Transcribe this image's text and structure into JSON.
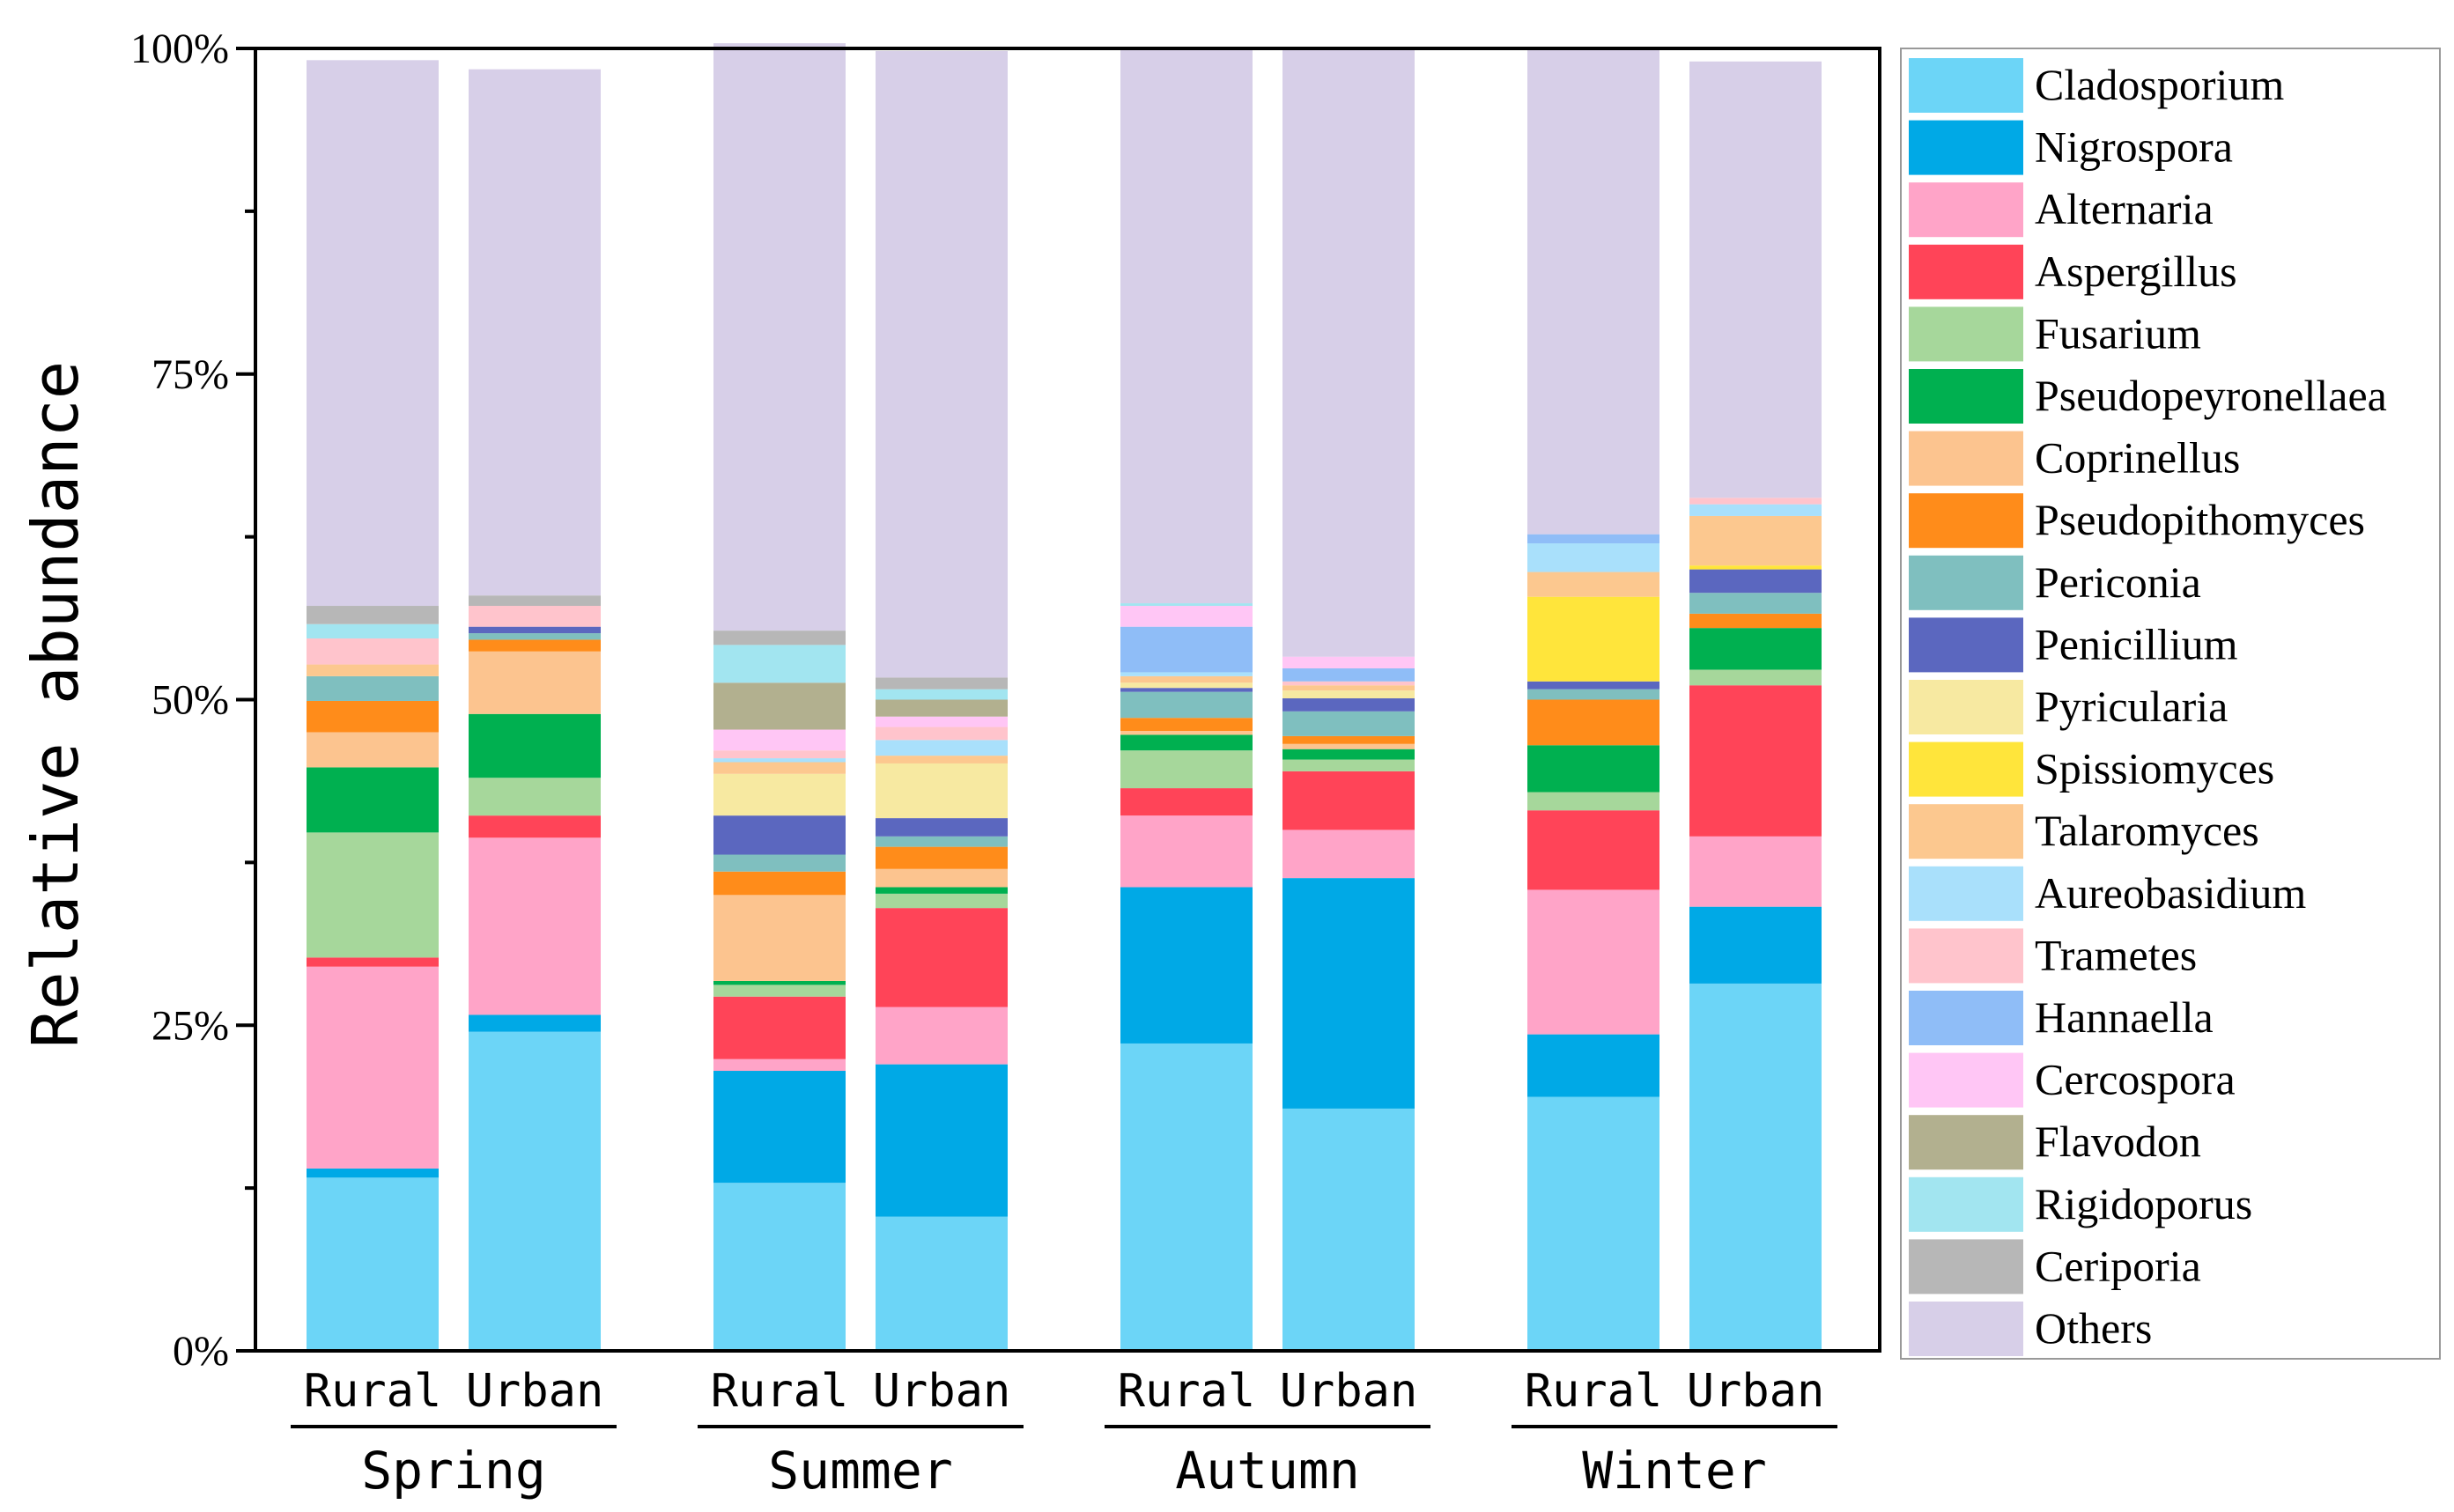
{
  "chart_data": {
    "type": "stacked-bar",
    "ylabel": "Relative abundance",
    "ylim": [
      0,
      100
    ],
    "yticks": [
      "0%",
      "25%",
      "50%",
      "75%",
      "100%"
    ],
    "groups": [
      {
        "name": "Spring",
        "bars": [
          "Rural",
          "Urban"
        ]
      },
      {
        "name": "Summer",
        "bars": [
          "Rural",
          "Urban"
        ]
      },
      {
        "name": "Autumn",
        "bars": [
          "Rural",
          "Urban"
        ]
      },
      {
        "name": "Winter",
        "bars": [
          "Rural",
          "Urban"
        ]
      }
    ],
    "series": [
      {
        "name": "Cladosporium",
        "color": "#6cd5f7",
        "values": [
          13.3,
          24.5,
          12.9,
          10.3,
          23.6,
          18.6,
          19.5,
          28.2
        ]
      },
      {
        "name": "Nigrospora",
        "color": "#00a9e6",
        "values": [
          0.7,
          1.3,
          8.6,
          11.7,
          12.0,
          17.7,
          4.8,
          5.9
        ]
      },
      {
        "name": "Alternaria",
        "color": "#ffa4c8",
        "values": [
          15.5,
          13.6,
          0.9,
          4.4,
          5.5,
          3.7,
          11.1,
          5.4
        ]
      },
      {
        "name": "Aspergillus",
        "color": "#ff4458",
        "values": [
          0.7,
          1.7,
          4.8,
          7.6,
          2.1,
          4.5,
          6.1,
          11.6
        ]
      },
      {
        "name": "Fusarium",
        "color": "#a6d79b",
        "values": [
          9.6,
          2.9,
          0.9,
          1.1,
          2.9,
          0.9,
          1.4,
          1.2
        ]
      },
      {
        "name": "Pseudopeyronellaea",
        "color": "#00b050",
        "values": [
          5.0,
          4.9,
          0.3,
          0.5,
          1.2,
          0.8,
          3.6,
          3.2
        ]
      },
      {
        "name": "Coprinellus",
        "color": "#fcc48f",
        "values": [
          2.7,
          4.8,
          6.6,
          1.4,
          0.3,
          0.4,
          0.0,
          0.0
        ]
      },
      {
        "name": "Pseudopithomyces",
        "color": "#ff8c1a",
        "values": [
          2.4,
          0.9,
          1.8,
          1.7,
          1.0,
          0.6,
          3.5,
          1.1
        ]
      },
      {
        "name": "Periconia",
        "color": "#7fbfbf",
        "values": [
          1.9,
          0.5,
          1.3,
          0.8,
          2.0,
          1.9,
          0.8,
          1.6
        ]
      },
      {
        "name": "Penicillium",
        "color": "#5b67bf",
        "values": [
          0.0,
          0.5,
          3.0,
          1.4,
          0.3,
          1.0,
          0.6,
          1.8
        ]
      },
      {
        "name": "Pyricularia",
        "color": "#f7e9a1",
        "values": [
          0.0,
          0.0,
          3.2,
          4.2,
          0.4,
          0.6,
          0.0,
          0.0
        ]
      },
      {
        "name": "Spissiomyces",
        "color": "#ffe53b",
        "values": [
          0.0,
          0.0,
          0.0,
          0.0,
          0.0,
          0.0,
          6.5,
          0.3
        ]
      },
      {
        "name": "Talaromyces",
        "color": "#fcc88f",
        "values": [
          0.9,
          0.0,
          0.9,
          0.6,
          0.5,
          0.4,
          1.9,
          3.8
        ]
      },
      {
        "name": "Aureobasidium",
        "color": "#a9e0fb",
        "values": [
          0.0,
          0.0,
          0.3,
          1.2,
          0.3,
          0.0,
          2.2,
          0.9
        ]
      },
      {
        "name": "Trametes",
        "color": "#ffc4cc",
        "values": [
          2.0,
          1.6,
          0.6,
          1.0,
          0.0,
          0.3,
          0.0,
          0.5
        ]
      },
      {
        "name": "Hannaella",
        "color": "#8fbdf7",
        "values": [
          0.0,
          0.0,
          0.0,
          0.0,
          3.5,
          1.0,
          0.7,
          0.0
        ]
      },
      {
        "name": "Cercospora",
        "color": "#ffc6f5",
        "values": [
          0.0,
          0.0,
          1.6,
          0.8,
          1.6,
          0.9,
          0.0,
          0.0
        ]
      },
      {
        "name": "Flavodon",
        "color": "#b2b08f",
        "values": [
          0.0,
          0.0,
          3.6,
          1.3,
          0.0,
          0.0,
          0.0,
          0.0
        ]
      },
      {
        "name": "Rigidoporus",
        "color": "#a2e5f0",
        "values": [
          1.1,
          0.0,
          2.9,
          0.8,
          0.2,
          0.0,
          0.0,
          0.0
        ]
      },
      {
        "name": "Ceriporia",
        "color": "#b7b7b7",
        "values": [
          1.4,
          0.8,
          1.1,
          0.9,
          0.0,
          0.0,
          0.0,
          0.0
        ]
      },
      {
        "name": "Others",
        "color": "#d7cfe8",
        "values": [
          41.9,
          40.4,
          45.1,
          48.1,
          42.6,
          46.6,
          37.3,
          33.5
        ]
      }
    ]
  }
}
